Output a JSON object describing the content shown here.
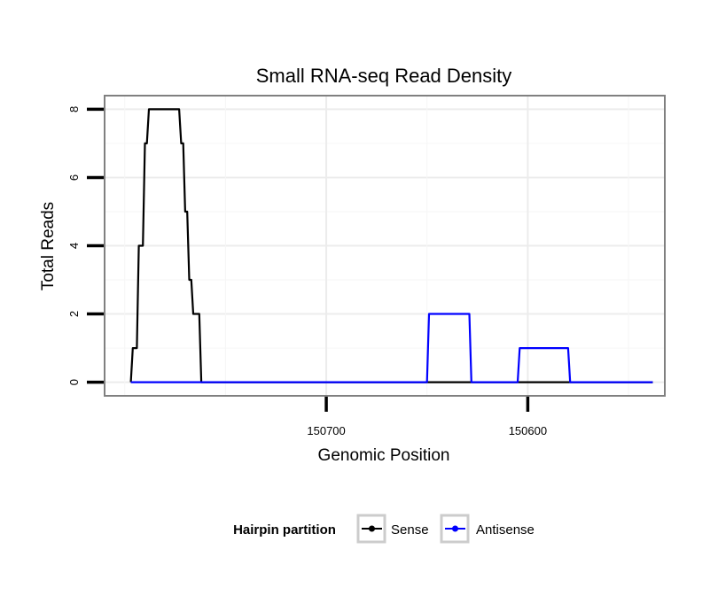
{
  "chart_data": {
    "type": "line",
    "title": "Small RNA-seq Read Density",
    "xlabel": "Genomic Position",
    "ylabel": "Total Reads",
    "x_reversed": true,
    "xlim": [
      150810,
      150532
    ],
    "ylim": [
      -0.4,
      8.4
    ],
    "x_ticks": [
      150700,
      150600
    ],
    "x_tick_labels": [
      "150700",
      "150600"
    ],
    "y_ticks": [
      0,
      2,
      4,
      6,
      8
    ],
    "y_tick_labels": [
      "0",
      "2",
      "4",
      "6",
      "8"
    ],
    "grid": true,
    "legend": {
      "title": "Hairpin partition",
      "position": "bottom",
      "entries": [
        "Sense",
        "Antisense"
      ]
    },
    "series": [
      {
        "name": "Sense",
        "color": "#000000",
        "points": [
          [
            150797,
            0
          ],
          [
            150796,
            1
          ],
          [
            150794,
            1
          ],
          [
            150793,
            4
          ],
          [
            150791,
            4
          ],
          [
            150790,
            7
          ],
          [
            150789,
            7
          ],
          [
            150788,
            8
          ],
          [
            150773,
            8
          ],
          [
            150772,
            7
          ],
          [
            150771,
            7
          ],
          [
            150770,
            5
          ],
          [
            150769,
            5
          ],
          [
            150768,
            3
          ],
          [
            150767,
            3
          ],
          [
            150766,
            2
          ],
          [
            150763,
            2
          ],
          [
            150762,
            0
          ],
          [
            150538,
            0
          ]
        ]
      },
      {
        "name": "Antisense",
        "color": "#0000ff",
        "points": [
          [
            150797,
            0
          ],
          [
            150650,
            0
          ],
          [
            150649,
            2
          ],
          [
            150629,
            2
          ],
          [
            150628,
            0
          ],
          [
            150605,
            0
          ],
          [
            150604,
            1
          ],
          [
            150580,
            1
          ],
          [
            150579,
            0
          ],
          [
            150538,
            0
          ]
        ]
      }
    ]
  }
}
